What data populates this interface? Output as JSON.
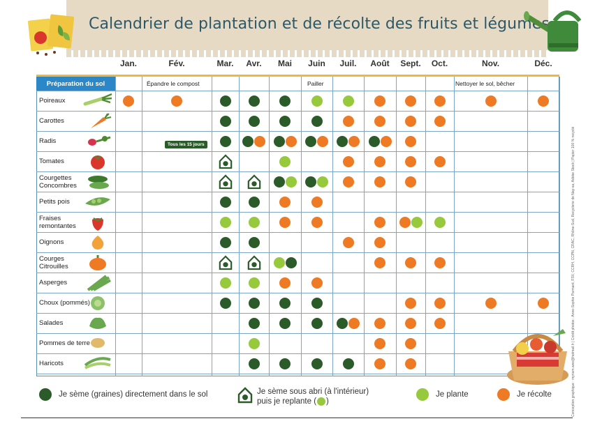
{
  "title": "Calendrier de plantation et de récolte des fruits et légumes",
  "side_credit": "Conception graphique : myriam.wee@hotmail.fr | Crédit photos : Anne-Sophie Parmant, FSV, CCRH, CCPN, CRAC, Rhône-Sud, Recyclerie de Nay-sa, Adobe Stock | Papier 100 % recyclé",
  "months": [
    "Jan.",
    "Fév.",
    "Mar.",
    "Avr.",
    "Mai",
    "Juin",
    "Juil.",
    "Août",
    "Sept.",
    "Oct.",
    "Nov.",
    "Déc."
  ],
  "prep": {
    "label": "Préparation du sol",
    "compost": "Épandre le compost",
    "pailler": "Pailler",
    "nettoyer": "Nettoyer le sol, bêcher"
  },
  "badge": "Tous les 15 jours",
  "rows": [
    {
      "label": "Poireaux",
      "icon": "leek-icon"
    },
    {
      "label": "Carottes",
      "icon": "carrot-icon"
    },
    {
      "label": "Radis",
      "icon": "radish-icon"
    },
    {
      "label": "Tomates",
      "icon": "tomato-icon"
    },
    {
      "label": "Courgettes\nConcombres",
      "icon": "zucchini-icon"
    },
    {
      "label": "Petits pois",
      "icon": "peas-icon"
    },
    {
      "label": "Fraises\nremontantes",
      "icon": "strawberry-icon"
    },
    {
      "label": "Oignons",
      "icon": "onion-icon"
    },
    {
      "label": "Courges\nCitrouilles",
      "icon": "pumpkin-icon"
    },
    {
      "label": "Asperges",
      "icon": "asparagus-icon"
    },
    {
      "label": "Choux (pommés)",
      "icon": "cabbage-icon"
    },
    {
      "label": "Salades",
      "icon": "lettuce-icon"
    },
    {
      "label": "Pommes de terre",
      "icon": "potato-icon"
    },
    {
      "label": "Haricots",
      "icon": "beans-icon"
    }
  ],
  "schedule": [
    {
      "Jan.": [
        "R"
      ],
      "Fév.": [
        "R"
      ],
      "Mar.": [
        "S"
      ],
      "Avr.": [
        "S"
      ],
      "Mai": [
        "S"
      ],
      "Juin": [
        "P"
      ],
      "Juil.": [
        "P"
      ],
      "Août": [
        "R"
      ],
      "Sept.": [
        "R"
      ],
      "Oct.": [
        "R"
      ],
      "Nov.": [
        "R"
      ],
      "Déc.": [
        "R"
      ]
    },
    {
      "Mar.": [
        "S"
      ],
      "Avr.": [
        "S"
      ],
      "Mai": [
        "S"
      ],
      "Juin": [
        "S"
      ],
      "Juil.": [
        "R"
      ],
      "Août": [
        "R"
      ],
      "Sept.": [
        "R"
      ],
      "Oct.": [
        "R"
      ]
    },
    {
      "Mar.": [
        "S"
      ],
      "Avr.": [
        "S",
        "R"
      ],
      "Mai": [
        "S",
        "R"
      ],
      "Juin": [
        "S",
        "R"
      ],
      "Juil.": [
        "S",
        "R"
      ],
      "Août": [
        "S",
        "R"
      ],
      "Sept.": [
        "R"
      ]
    },
    {
      "Mar.": [
        "A"
      ],
      "Mai": [
        "P"
      ],
      "Juil.": [
        "R"
      ],
      "Août": [
        "R"
      ],
      "Sept.": [
        "R"
      ],
      "Oct.": [
        "R"
      ]
    },
    {
      "Mar.": [
        "A"
      ],
      "Avr.": [
        "A"
      ],
      "Mai": [
        "S",
        "P"
      ],
      "Juin": [
        "S",
        "P"
      ],
      "Juil.": [
        "R"
      ],
      "Août": [
        "R"
      ],
      "Sept.": [
        "R"
      ]
    },
    {
      "Mar.": [
        "S"
      ],
      "Avr.": [
        "S"
      ],
      "Mai": [
        "R"
      ],
      "Juin": [
        "R"
      ]
    },
    {
      "Mar.": [
        "P"
      ],
      "Avr.": [
        "P"
      ],
      "Mai": [
        "R"
      ],
      "Juin": [
        "R"
      ],
      "Août": [
        "R"
      ],
      "Sept.": [
        "R",
        "P"
      ],
      "Oct.": [
        "P"
      ]
    },
    {
      "Mar.": [
        "S"
      ],
      "Avr.": [
        "S"
      ],
      "Juil.": [
        "R"
      ],
      "Août": [
        "R"
      ]
    },
    {
      "Mar.": [
        "A"
      ],
      "Avr.": [
        "A"
      ],
      "Mai": [
        "P",
        "S"
      ],
      "Août": [
        "R"
      ],
      "Sept.": [
        "R"
      ],
      "Oct.": [
        "R"
      ]
    },
    {
      "Mar.": [
        "P"
      ],
      "Avr.": [
        "P"
      ],
      "Mai": [
        "R"
      ],
      "Juin": [
        "R"
      ]
    },
    {
      "Mar.": [
        "S"
      ],
      "Avr.": [
        "S"
      ],
      "Mai": [
        "S"
      ],
      "Juin": [
        "S"
      ],
      "Sept.": [
        "R"
      ],
      "Oct.": [
        "R"
      ],
      "Nov.": [
        "R"
      ],
      "Déc.": [
        "R"
      ]
    },
    {
      "Avr.": [
        "S"
      ],
      "Mai": [
        "S"
      ],
      "Juin": [
        "S"
      ],
      "Juil.": [
        "S",
        "R"
      ],
      "Août": [
        "R"
      ],
      "Sept.": [
        "R"
      ],
      "Oct.": [
        "R"
      ]
    },
    {
      "Avr.": [
        "P"
      ],
      "Août": [
        "R"
      ],
      "Sept.": [
        "R"
      ]
    },
    {
      "Avr.": [
        "S"
      ],
      "Mai": [
        "S"
      ],
      "Juin": [
        "S"
      ],
      "Juil.": [
        "S"
      ],
      "Août": [
        "R"
      ],
      "Sept.": [
        "R"
      ]
    }
  ],
  "legend": {
    "seme": "Je sème (graines) directement dans le sol",
    "abri_line1": "Je sème sous abri (à l'intérieur)",
    "abri_line2": "puis je replante (",
    "abri_close": ")",
    "plante": "Je plante",
    "recolte": "Je récolte"
  },
  "colors": {
    "seme": "#2c5b2a",
    "plante": "#97c93d",
    "recolte": "#ee7a24",
    "header_blue": "#2c87c8",
    "accent_yellow": "#f0b73a",
    "title": "#2d5868"
  }
}
